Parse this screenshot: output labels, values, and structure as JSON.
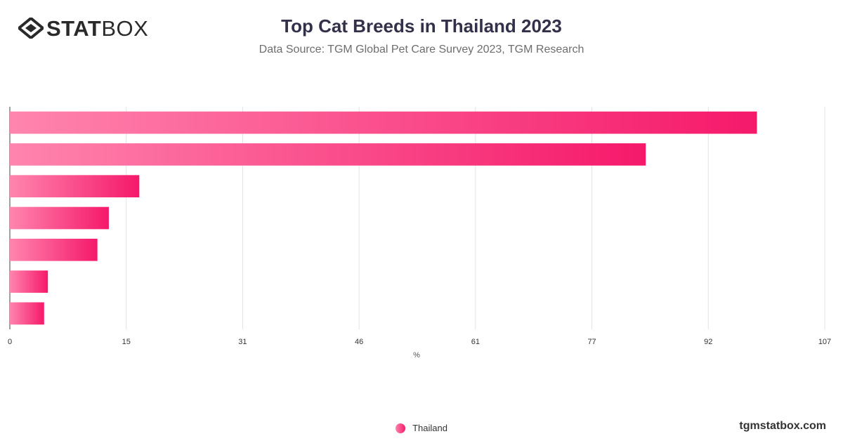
{
  "brand": {
    "logo_bold": "STAT",
    "logo_thin": "BOX",
    "website": "tgmstatbox.com"
  },
  "header": {
    "title": "Top Cat Breeds in Thailand 2023",
    "subtitle": "Data Source: TGM Global Pet Care Survey 2023, TGM Research"
  },
  "chart_data": {
    "type": "bar",
    "orientation": "horizontal",
    "title": "Top Cat Breeds in Thailand 2023",
    "subtitle": "Data Source: TGM Global Pet Care Survey 2023, TGM Research",
    "xlabel": "%",
    "ylabel": "",
    "xlim": [
      0,
      107
    ],
    "x_ticks": [
      "0",
      "15",
      "31",
      "46",
      "61",
      "77",
      "92",
      "107"
    ],
    "categories": [
      "",
      "",
      "",
      "",
      "",
      "",
      ""
    ],
    "series": [
      {
        "name": "Thailand",
        "values": [
          98.1,
          83.5,
          17.0,
          13.0,
          11.5,
          5.0,
          4.5
        ]
      }
    ],
    "grid": true,
    "legend_position": "bottom-center",
    "colors": {
      "bar_start": "#ff85ae",
      "bar_end": "#f5196a"
    }
  }
}
